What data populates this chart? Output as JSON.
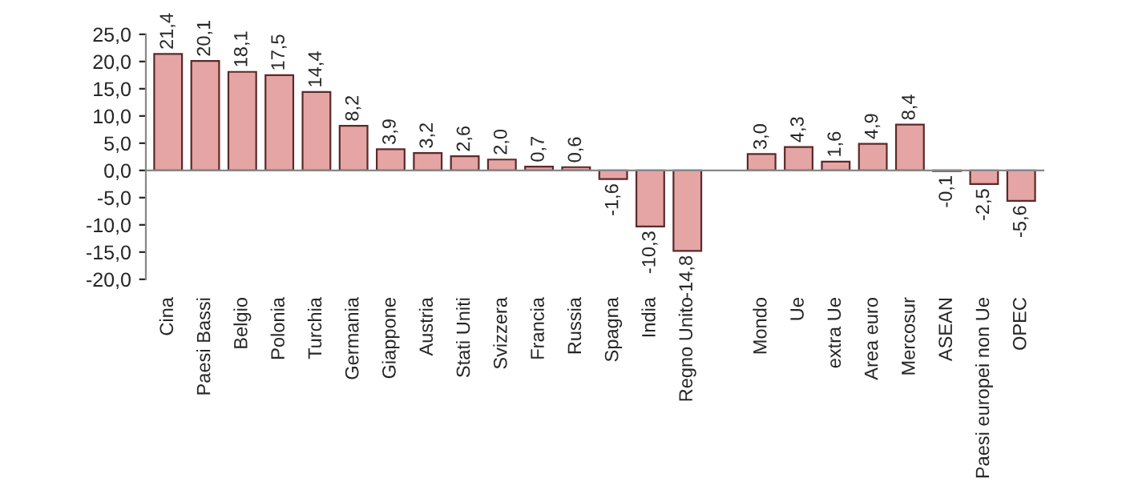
{
  "chart_data": {
    "type": "bar",
    "categories": [
      "Cina",
      "Paesi Bassi",
      "Belgio",
      "Polonia",
      "Turchia",
      "Germania",
      "Giappone",
      "Austria",
      "Stati Uniti",
      "Svizzera",
      "Francia",
      "Russia",
      "Spagna",
      "India",
      "Regno Unito",
      null,
      "Mondo",
      "Ue",
      "extra Ue",
      "Area euro",
      "Mercosur",
      "ASEAN",
      "Paesi europei non Ue",
      "OPEC"
    ],
    "values": [
      21.4,
      20.1,
      18.1,
      17.5,
      14.4,
      8.2,
      3.9,
      3.2,
      2.6,
      2.0,
      0.7,
      0.6,
      -1.6,
      -10.3,
      -14.8,
      null,
      3.0,
      4.3,
      1.6,
      4.9,
      8.4,
      -0.1,
      -2.5,
      -5.6
    ],
    "value_labels": [
      "21,4",
      "20,1",
      "18,1",
      "17,5",
      "14,4",
      "8,2",
      "3,9",
      "3,2",
      "2,6",
      "2,0",
      "0,7",
      "0,6",
      "-1,6",
      "-10,3",
      "-14,8",
      null,
      "3,0",
      "4,3",
      "1,6",
      "4,9",
      "8,4",
      "-0,1",
      "-2,5",
      "-5,6"
    ],
    "color": "#e6a5a5",
    "ylim": [
      -20,
      25
    ],
    "yticks": [
      {
        "value": -20,
        "label": "-20,0"
      },
      {
        "value": -15,
        "label": "-15,0"
      },
      {
        "value": -10,
        "label": "-10,0"
      },
      {
        "value": -5,
        "label": "-5,0"
      },
      {
        "value": 0,
        "label": "0,0"
      },
      {
        "value": 5,
        "label": "5,0"
      },
      {
        "value": 10,
        "label": "10,0"
      },
      {
        "value": 15,
        "label": "15,0"
      },
      {
        "value": 20,
        "label": "20,0"
      },
      {
        "value": 25,
        "label": "25,0"
      }
    ],
    "legend": false
  }
}
